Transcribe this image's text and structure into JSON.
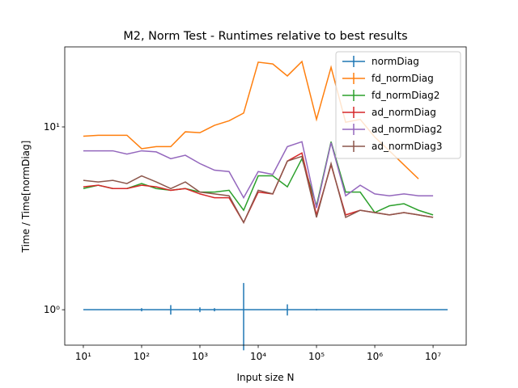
{
  "chart_data": {
    "type": "line",
    "title": "M2, Norm Test - Runtimes relative to best results",
    "xlabel": "Input size N",
    "ylabel": "Time / Time[normDiag]",
    "log_x": true,
    "log_y": true,
    "xlim": [
      4.8,
      37000000
    ],
    "ylim": [
      0.64,
      27.4
    ],
    "xticks": [
      {
        "value": 10,
        "label": "10¹"
      },
      {
        "value": 100,
        "label": "10²"
      },
      {
        "value": 1000,
        "label": "10³"
      },
      {
        "value": 10000,
        "label": "10⁴"
      },
      {
        "value": 100000,
        "label": "10⁵"
      },
      {
        "value": 1000000,
        "label": "10⁶"
      },
      {
        "value": 10000000,
        "label": "10⁷"
      }
    ],
    "yticks": [
      {
        "value": 1,
        "label": "10⁰"
      },
      {
        "value": 10,
        "label": "10¹"
      }
    ],
    "legend": "upper right",
    "x": [
      10,
      18,
      32,
      56,
      100,
      178,
      316,
      562,
      1000,
      1778,
      3162,
      5623,
      10000,
      17783,
      31623,
      56234,
      100000,
      177828,
      316228,
      562341,
      1000000,
      1778279,
      3162278,
      5623413,
      10000000,
      17782794
    ],
    "series": [
      {
        "name": "normDiag",
        "color": "#1f77b4",
        "values": [
          1,
          1,
          1,
          1,
          1,
          1,
          1,
          1,
          1,
          1,
          1,
          1,
          1,
          1,
          1,
          1,
          1,
          1,
          1,
          1,
          1,
          1,
          1,
          1,
          1,
          1
        ],
        "errors": [
          null,
          null,
          null,
          null,
          0.02,
          null,
          0.06,
          null,
          0.03,
          0.02,
          null,
          0.4,
          null,
          null,
          0.07,
          null,
          0.01,
          null,
          null,
          null,
          null,
          null,
          null,
          null,
          null,
          null
        ]
      },
      {
        "name": "fd_normDiag",
        "color": "#ff7f0e",
        "values": [
          8.9,
          9.0,
          9.0,
          9.0,
          7.6,
          7.8,
          7.8,
          9.4,
          9.3,
          10.2,
          10.8,
          11.9,
          22.6,
          22.1,
          19.0,
          22.8,
          11.0,
          21.2,
          10.6,
          11.0,
          8.8,
          7.4,
          6.2,
          5.2,
          null,
          null
        ]
      },
      {
        "name": "fd_normDiag2",
        "color": "#2ca02c",
        "values": [
          4.6,
          4.8,
          4.6,
          4.6,
          4.9,
          4.6,
          4.5,
          4.6,
          4.4,
          4.4,
          4.5,
          3.5,
          5.4,
          5.4,
          4.7,
          6.7,
          3.7,
          8.3,
          4.4,
          4.4,
          3.4,
          3.7,
          3.8,
          3.5,
          3.3,
          null
        ]
      },
      {
        "name": "ad_normDiag",
        "color": "#d62728",
        "values": [
          4.7,
          4.8,
          4.6,
          4.6,
          4.8,
          4.7,
          4.5,
          4.6,
          4.3,
          4.1,
          4.1,
          3.0,
          4.4,
          4.3,
          6.5,
          7.2,
          3.3,
          6.2,
          3.3,
          3.5,
          3.4,
          3.3,
          3.4,
          3.3,
          3.2,
          null
        ]
      },
      {
        "name": "ad_normDiag2",
        "color": "#9467bd",
        "values": [
          7.4,
          7.4,
          7.4,
          7.1,
          7.4,
          7.3,
          6.7,
          7.0,
          6.3,
          5.8,
          5.7,
          4.1,
          5.7,
          5.5,
          7.8,
          8.3,
          3.6,
          8.2,
          4.2,
          4.8,
          4.3,
          4.2,
          4.3,
          4.2,
          4.2,
          null
        ]
      },
      {
        "name": "ad_normDiag3",
        "color": "#8c564b",
        "values": [
          5.1,
          5.0,
          5.1,
          4.9,
          5.4,
          5.0,
          4.6,
          5.0,
          4.4,
          4.3,
          4.2,
          3.0,
          4.5,
          4.3,
          6.5,
          6.9,
          3.2,
          6.3,
          3.2,
          3.5,
          3.4,
          3.3,
          3.4,
          3.3,
          3.2,
          null
        ]
      }
    ]
  }
}
